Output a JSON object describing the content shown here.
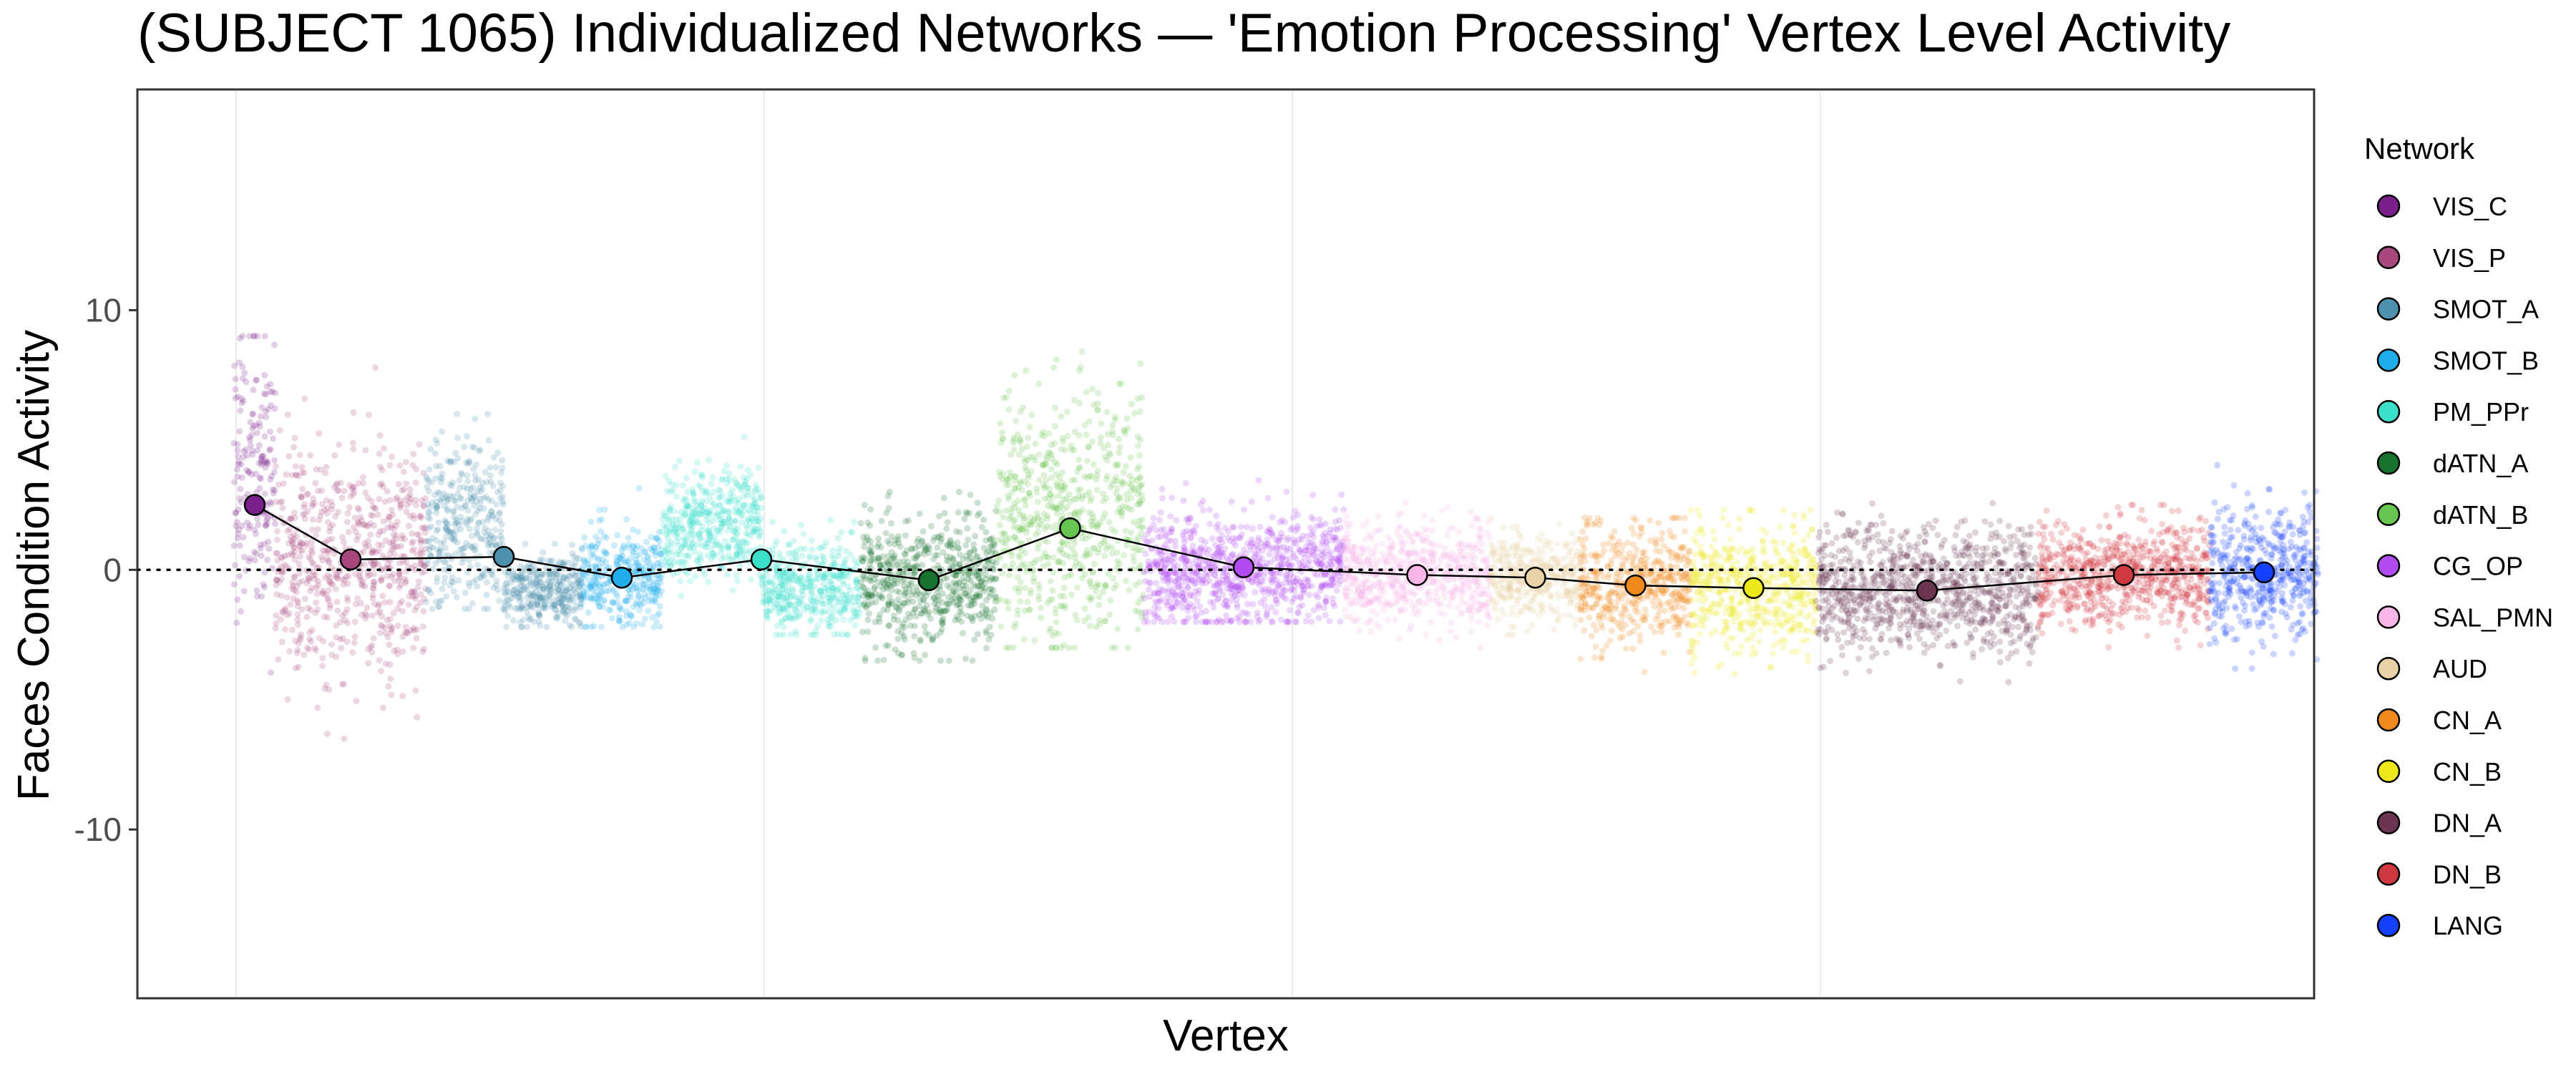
{
  "chart_data": {
    "type": "scatter",
    "title": "(SUBJECT 1065) Individualized Networks — 'Emotion Processing' Vertex Level Activity",
    "xlabel": "Vertex",
    "ylabel": "Faces Condition Activity",
    "ylim": [
      -16.5,
      18.5
    ],
    "y_ticks": [
      -10,
      0,
      10
    ],
    "reference_line_y": 0,
    "grid": true,
    "legend": {
      "title": "Network",
      "position": "right",
      "entries": [
        "VIS_C",
        "VIS_P",
        "SMOT_A",
        "SMOT_B",
        "PM_PPr",
        "dATN_A",
        "dATN_B",
        "CG_OP",
        "SAL_PMN",
        "AUD",
        "CN_A",
        "CN_B",
        "DN_A",
        "DN_B",
        "LANG"
      ]
    },
    "networks": [
      {
        "name": "VIS_C",
        "color": "#7B1F8C",
        "mean": 2.5,
        "points": [
          {
            "y": 3.5,
            "spread": 2.5,
            "range": [
              -5.5,
              9.0
            ]
          }
        ]
      },
      {
        "name": "VIS_P",
        "color": "#A8487F",
        "mean": 0.4,
        "points": [
          {
            "y": 0.3,
            "spread": 2.2,
            "range": [
              -6.5,
              10.0
            ]
          }
        ]
      },
      {
        "name": "SMOT_A",
        "color": "#4E91AE",
        "mean": 0.5,
        "points": [
          {
            "y": 1.8,
            "spread": 1.6,
            "range": [
              -1.5,
              6.0
            ]
          },
          {
            "y": -0.8,
            "spread": 0.7,
            "range": [
              -2.2,
              1.0
            ]
          }
        ]
      },
      {
        "name": "SMOT_B",
        "color": "#1FAEEB",
        "mean": -0.3,
        "points": [
          {
            "y": -0.3,
            "spread": 0.9,
            "range": [
              -2.2,
              4.0
            ]
          }
        ]
      },
      {
        "name": "PM_PPr",
        "color": "#3AE0CB",
        "mean": 0.4,
        "points": [
          {
            "y": 1.8,
            "spread": 1.0,
            "range": [
              -1.0,
              5.5
            ]
          },
          {
            "y": -0.6,
            "spread": 0.9,
            "range": [
              -2.5,
              3.5
            ]
          }
        ]
      },
      {
        "name": "dATN_A",
        "color": "#16742E",
        "mean": -0.4,
        "points": [
          {
            "y": -0.5,
            "spread": 1.2,
            "range": [
              -3.5,
              3.0
            ]
          }
        ]
      },
      {
        "name": "dATN_B",
        "color": "#67C64F",
        "mean": 1.6,
        "points": [
          {
            "y": 2.0,
            "spread": 2.4,
            "range": [
              -3.0,
              10.5
            ]
          }
        ]
      },
      {
        "name": "CG_OP",
        "color": "#B24BF0",
        "mean": 0.1,
        "points": [
          {
            "y": 0.0,
            "spread": 1.1,
            "range": [
              -2.0,
              5.5
            ]
          }
        ]
      },
      {
        "name": "SAL_PMN",
        "color": "#F8B7E7",
        "mean": -0.2,
        "points": [
          {
            "y": -0.2,
            "spread": 1.0,
            "range": [
              -3.0,
              2.6
            ]
          }
        ]
      },
      {
        "name": "AUD",
        "color": "#E9D2A6",
        "mean": -0.3,
        "points": [
          {
            "y": -0.3,
            "spread": 0.8,
            "range": [
              -2.5,
              2.0
            ]
          }
        ]
      },
      {
        "name": "CN_A",
        "color": "#F08A1D",
        "mean": -0.6,
        "points": [
          {
            "y": -0.6,
            "spread": 1.2,
            "range": [
              -4.0,
              2.0
            ]
          }
        ]
      },
      {
        "name": "CN_B",
        "color": "#ECE81A",
        "mean": -0.7,
        "points": [
          {
            "y": -0.7,
            "spread": 1.2,
            "range": [
              -4.8,
              2.3
            ]
          }
        ]
      },
      {
        "name": "DN_A",
        "color": "#6B3551",
        "mean": -0.8,
        "points": [
          {
            "y": -0.8,
            "spread": 1.2,
            "range": [
              -5.0,
              4.5
            ]
          }
        ]
      },
      {
        "name": "DN_B",
        "color": "#D0383F",
        "mean": -0.2,
        "points": [
          {
            "y": -0.2,
            "spread": 1.0,
            "range": [
              -3.0,
              2.5
            ]
          }
        ]
      },
      {
        "name": "LANG",
        "color": "#1440FF",
        "mean": -0.1,
        "points": [
          {
            "y": -0.1,
            "spread": 1.3,
            "range": [
              -3.8,
              6.0
            ]
          }
        ]
      }
    ]
  }
}
